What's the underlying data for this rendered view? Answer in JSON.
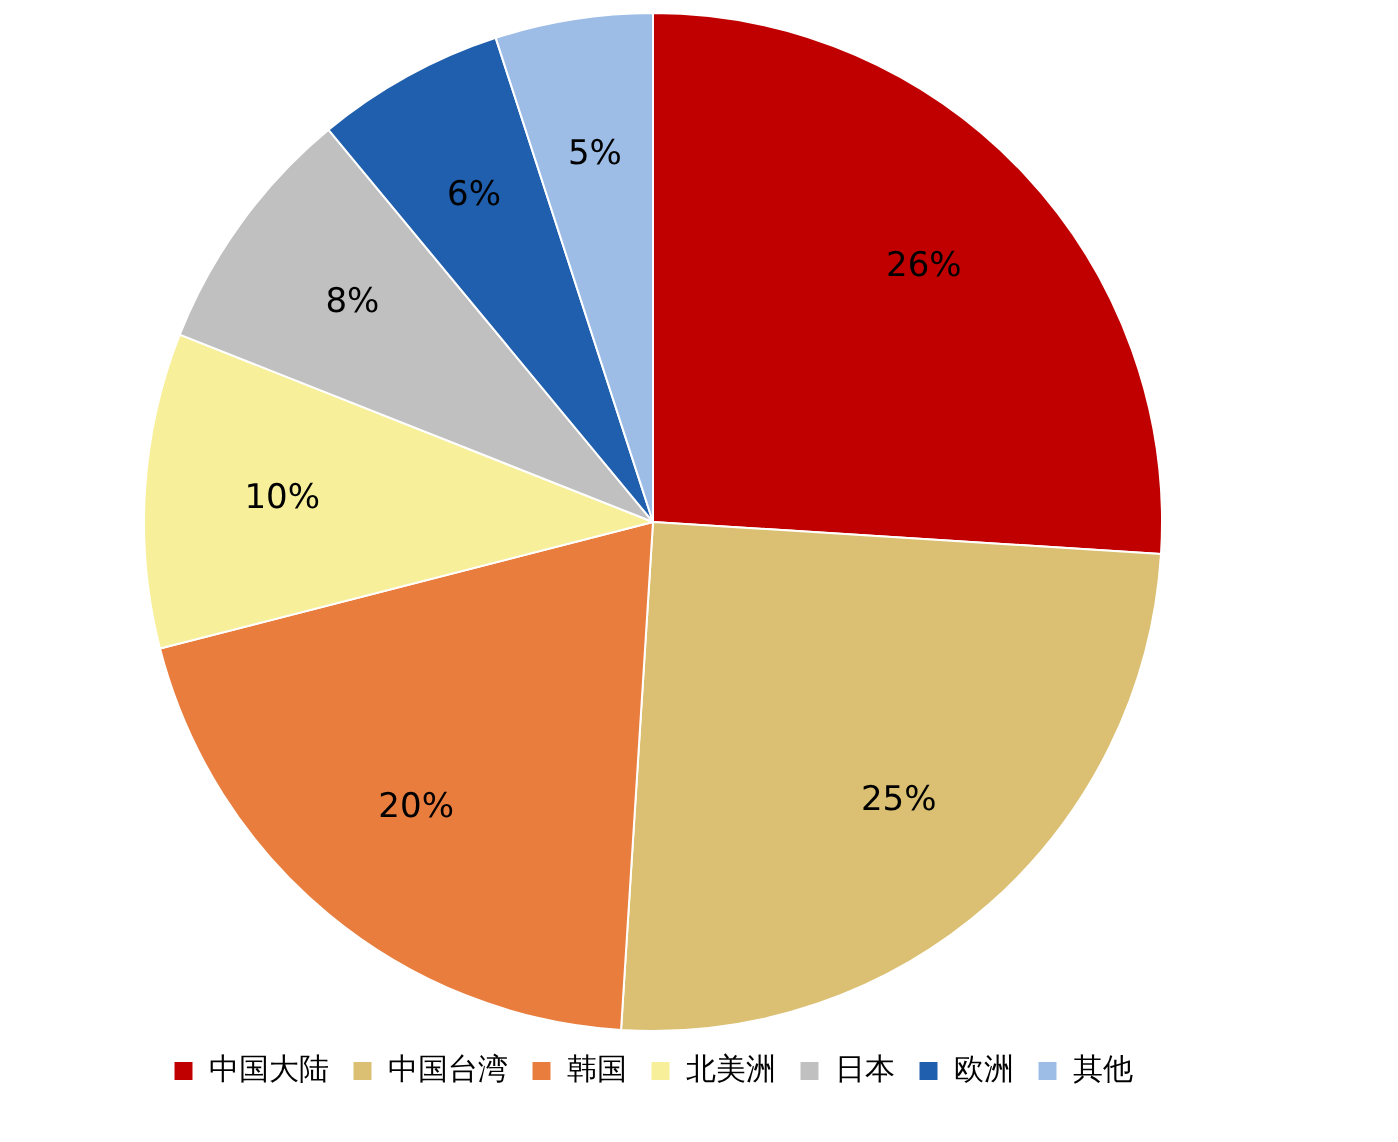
{
  "chart_data": {
    "type": "pie",
    "categories": [
      "中国大陆",
      "中国台湾",
      "韩国",
      "北美洲",
      "日本",
      "欧洲",
      "其他"
    ],
    "values": [
      26,
      25,
      20,
      10,
      8,
      6,
      5
    ],
    "colors": [
      "#c00000",
      "#dbbf72",
      "#e87d3e",
      "#f7ef9a",
      "#c0c0c0",
      "#1f5fad",
      "#9dbde6"
    ],
    "value_labels": [
      "26%",
      "25%",
      "20%",
      "10%",
      "8%",
      "6%",
      "5%"
    ],
    "legend": "bottom"
  }
}
